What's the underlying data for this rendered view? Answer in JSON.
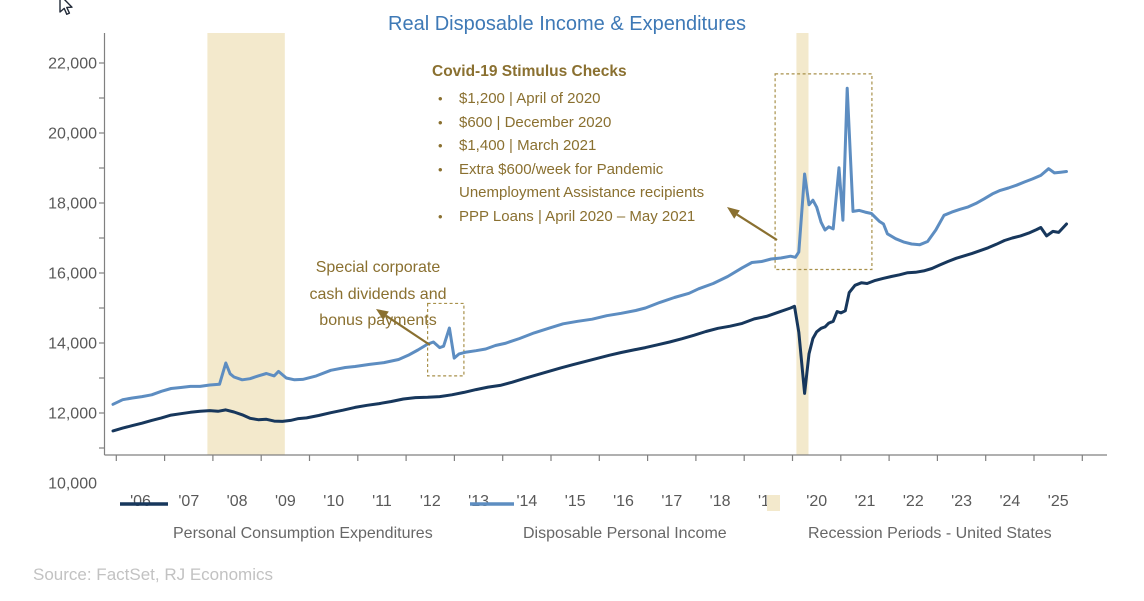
{
  "title": "Real Disposable Income & Expenditures",
  "source": "Source: FactSet, RJ Economics",
  "colors": {
    "pce_line": "#17375c",
    "dpi_line": "#5d8dc1",
    "recession_band": "#f3e9cc",
    "annotation_text": "#8a7030",
    "highlight_box": "#a8914b",
    "title_text": "#3e79b6",
    "axis": "#808080",
    "axis_label": "#595959",
    "legend_text": "#676767",
    "source_text": "#c2c2c2"
  },
  "annotations": {
    "covid": {
      "title": "Covid-19 Stimulus Checks",
      "bullets": [
        "$1,200 | April of 2020",
        "$600 | December 2020",
        "$1,400 | March 2021",
        "Extra $600/week for Pandemic Unemployment Assistance recipients",
        "PPP Loans | April 2020 – May 2021"
      ]
    },
    "dividends": {
      "text": "Special corporate\ncash dividends and\nbonus payments"
    }
  },
  "legend": [
    {
      "label": "Personal Consumption Expenditures",
      "marker": "line",
      "color": "#17375c"
    },
    {
      "label": "Disposable Personal Income",
      "marker": "line",
      "color": "#5d8dc1"
    },
    {
      "label": "Recession Periods - United States",
      "marker": "rect",
      "color": "#f3e9cc"
    }
  ],
  "chart_data": {
    "type": "line",
    "title": "Real Disposable Income & Expenditures",
    "xlabel": "",
    "ylabel": "",
    "x_axis": {
      "tick_labels": [
        "'06",
        "'07",
        "'08",
        "'09",
        "'10",
        "'11",
        "'12",
        "'13",
        "'14",
        "'15",
        "'16",
        "'17",
        "'18",
        "'19",
        "'20",
        "'21",
        "'22",
        "'23",
        "'24",
        "'25"
      ],
      "range": [
        2006,
        2026
      ]
    },
    "y_axis": {
      "labels": [
        "22,000",
        "20,000",
        "18,000",
        "16,000",
        "14,000",
        "12,000",
        "10,000"
      ],
      "label_values": [
        22000,
        20000,
        18000,
        16000,
        14000,
        12000,
        10000
      ],
      "min": 10000,
      "max": 22000,
      "minor_tick_step": 1000,
      "grid": false
    },
    "recession_bands": [
      [
        2007.95,
        2009.55
      ],
      [
        2020.12,
        2020.37
      ]
    ],
    "highlight_boxes": [
      {
        "name": "special-dividends",
        "x": [
          2012.5,
          2013.25
        ],
        "y": [
          13060,
          15130
        ]
      },
      {
        "name": "covid-stimulus",
        "x": [
          2019.68,
          2021.68
        ],
        "y": [
          16100,
          21690
        ]
      }
    ],
    "series": [
      {
        "name": "Personal Consumption Expenditures",
        "color": "#17375c",
        "points": [
          [
            2006.0,
            11490
          ],
          [
            2006.2,
            11570
          ],
          [
            2006.4,
            11640
          ],
          [
            2006.6,
            11710
          ],
          [
            2006.8,
            11790
          ],
          [
            2007.0,
            11860
          ],
          [
            2007.2,
            11940
          ],
          [
            2007.4,
            11980
          ],
          [
            2007.6,
            12020
          ],
          [
            2007.8,
            12050
          ],
          [
            2008.0,
            12070
          ],
          [
            2008.17,
            12050
          ],
          [
            2008.33,
            12090
          ],
          [
            2008.5,
            12030
          ],
          [
            2008.67,
            11950
          ],
          [
            2008.83,
            11850
          ],
          [
            2009.0,
            11810
          ],
          [
            2009.17,
            11820
          ],
          [
            2009.33,
            11770
          ],
          [
            2009.5,
            11760
          ],
          [
            2009.67,
            11790
          ],
          [
            2009.83,
            11840
          ],
          [
            2010.0,
            11860
          ],
          [
            2010.25,
            11930
          ],
          [
            2010.5,
            12010
          ],
          [
            2010.75,
            12080
          ],
          [
            2011.0,
            12160
          ],
          [
            2011.25,
            12220
          ],
          [
            2011.5,
            12270
          ],
          [
            2011.75,
            12330
          ],
          [
            2012.0,
            12400
          ],
          [
            2012.25,
            12440
          ],
          [
            2012.5,
            12450
          ],
          [
            2012.75,
            12470
          ],
          [
            2013.0,
            12520
          ],
          [
            2013.25,
            12590
          ],
          [
            2013.5,
            12670
          ],
          [
            2013.75,
            12740
          ],
          [
            2014.0,
            12790
          ],
          [
            2014.25,
            12880
          ],
          [
            2014.5,
            12990
          ],
          [
            2014.75,
            13090
          ],
          [
            2015.0,
            13190
          ],
          [
            2015.25,
            13290
          ],
          [
            2015.5,
            13380
          ],
          [
            2015.75,
            13470
          ],
          [
            2016.0,
            13560
          ],
          [
            2016.25,
            13650
          ],
          [
            2016.5,
            13730
          ],
          [
            2016.75,
            13800
          ],
          [
            2017.0,
            13870
          ],
          [
            2017.25,
            13950
          ],
          [
            2017.5,
            14030
          ],
          [
            2017.75,
            14120
          ],
          [
            2018.0,
            14220
          ],
          [
            2018.25,
            14330
          ],
          [
            2018.5,
            14420
          ],
          [
            2018.75,
            14480
          ],
          [
            2019.0,
            14560
          ],
          [
            2019.25,
            14690
          ],
          [
            2019.5,
            14760
          ],
          [
            2019.75,
            14880
          ],
          [
            2020.0,
            15000
          ],
          [
            2020.08,
            15050
          ],
          [
            2020.17,
            14310
          ],
          [
            2020.29,
            12560
          ],
          [
            2020.38,
            13690
          ],
          [
            2020.46,
            14130
          ],
          [
            2020.54,
            14320
          ],
          [
            2020.63,
            14420
          ],
          [
            2020.71,
            14460
          ],
          [
            2020.79,
            14570
          ],
          [
            2020.88,
            14620
          ],
          [
            2020.96,
            14900
          ],
          [
            2021.04,
            14860
          ],
          [
            2021.13,
            14920
          ],
          [
            2021.21,
            15440
          ],
          [
            2021.33,
            15650
          ],
          [
            2021.46,
            15720
          ],
          [
            2021.58,
            15700
          ],
          [
            2021.75,
            15790
          ],
          [
            2021.92,
            15850
          ],
          [
            2022.08,
            15900
          ],
          [
            2022.25,
            15950
          ],
          [
            2022.42,
            16010
          ],
          [
            2022.58,
            16020
          ],
          [
            2022.75,
            16060
          ],
          [
            2022.92,
            16130
          ],
          [
            2023.08,
            16230
          ],
          [
            2023.25,
            16330
          ],
          [
            2023.42,
            16420
          ],
          [
            2023.58,
            16490
          ],
          [
            2023.75,
            16560
          ],
          [
            2023.92,
            16640
          ],
          [
            2024.08,
            16720
          ],
          [
            2024.25,
            16820
          ],
          [
            2024.42,
            16930
          ],
          [
            2024.58,
            17000
          ],
          [
            2024.75,
            17060
          ],
          [
            2024.92,
            17140
          ],
          [
            2025.08,
            17240
          ],
          [
            2025.17,
            17300
          ],
          [
            2025.29,
            17060
          ],
          [
            2025.42,
            17190
          ],
          [
            2025.54,
            17160
          ],
          [
            2025.7,
            17400
          ]
        ]
      },
      {
        "name": "Disposable Personal Income",
        "color": "#5d8dc1",
        "points": [
          [
            2006.0,
            12250
          ],
          [
            2006.2,
            12380
          ],
          [
            2006.4,
            12430
          ],
          [
            2006.6,
            12470
          ],
          [
            2006.8,
            12520
          ],
          [
            2007.0,
            12620
          ],
          [
            2007.2,
            12700
          ],
          [
            2007.4,
            12730
          ],
          [
            2007.6,
            12760
          ],
          [
            2007.8,
            12760
          ],
          [
            2008.0,
            12800
          ],
          [
            2008.2,
            12820
          ],
          [
            2008.33,
            13430
          ],
          [
            2008.42,
            13120
          ],
          [
            2008.5,
            13030
          ],
          [
            2008.67,
            12950
          ],
          [
            2008.83,
            12980
          ],
          [
            2009.0,
            13060
          ],
          [
            2009.17,
            13130
          ],
          [
            2009.33,
            13060
          ],
          [
            2009.42,
            13190
          ],
          [
            2009.58,
            13000
          ],
          [
            2009.75,
            12950
          ],
          [
            2009.92,
            12960
          ],
          [
            2010.2,
            13060
          ],
          [
            2010.5,
            13220
          ],
          [
            2010.8,
            13300
          ],
          [
            2011.0,
            13330
          ],
          [
            2011.3,
            13390
          ],
          [
            2011.6,
            13440
          ],
          [
            2011.9,
            13530
          ],
          [
            2012.1,
            13650
          ],
          [
            2012.3,
            13800
          ],
          [
            2012.5,
            13970
          ],
          [
            2012.62,
            14030
          ],
          [
            2012.75,
            13870
          ],
          [
            2012.83,
            13910
          ],
          [
            2012.95,
            14430
          ],
          [
            2013.05,
            13570
          ],
          [
            2013.15,
            13690
          ],
          [
            2013.3,
            13740
          ],
          [
            2013.5,
            13780
          ],
          [
            2013.7,
            13830
          ],
          [
            2013.9,
            13930
          ],
          [
            2014.1,
            13990
          ],
          [
            2014.4,
            14130
          ],
          [
            2014.7,
            14290
          ],
          [
            2015.0,
            14420
          ],
          [
            2015.3,
            14550
          ],
          [
            2015.6,
            14620
          ],
          [
            2015.9,
            14680
          ],
          [
            2016.2,
            14780
          ],
          [
            2016.5,
            14850
          ],
          [
            2016.8,
            14930
          ],
          [
            2017.0,
            15000
          ],
          [
            2017.3,
            15160
          ],
          [
            2017.6,
            15300
          ],
          [
            2017.9,
            15420
          ],
          [
            2018.1,
            15550
          ],
          [
            2018.4,
            15700
          ],
          [
            2018.7,
            15900
          ],
          [
            2019.0,
            16150
          ],
          [
            2019.2,
            16300
          ],
          [
            2019.4,
            16330
          ],
          [
            2019.6,
            16400
          ],
          [
            2019.8,
            16430
          ],
          [
            2020.0,
            16480
          ],
          [
            2020.1,
            16450
          ],
          [
            2020.17,
            16600
          ],
          [
            2020.29,
            18830
          ],
          [
            2020.38,
            17950
          ],
          [
            2020.46,
            18080
          ],
          [
            2020.54,
            17880
          ],
          [
            2020.63,
            17450
          ],
          [
            2020.71,
            17230
          ],
          [
            2020.79,
            17320
          ],
          [
            2020.88,
            17260
          ],
          [
            2021.0,
            19010
          ],
          [
            2021.08,
            17510
          ],
          [
            2021.17,
            21280
          ],
          [
            2021.29,
            17760
          ],
          [
            2021.42,
            17790
          ],
          [
            2021.54,
            17740
          ],
          [
            2021.67,
            17700
          ],
          [
            2021.83,
            17480
          ],
          [
            2021.92,
            17400
          ],
          [
            2022.0,
            17120
          ],
          [
            2022.17,
            16980
          ],
          [
            2022.33,
            16890
          ],
          [
            2022.5,
            16830
          ],
          [
            2022.67,
            16810
          ],
          [
            2022.83,
            16900
          ],
          [
            2023.0,
            17230
          ],
          [
            2023.17,
            17650
          ],
          [
            2023.33,
            17740
          ],
          [
            2023.5,
            17820
          ],
          [
            2023.67,
            17890
          ],
          [
            2023.83,
            17990
          ],
          [
            2024.0,
            18120
          ],
          [
            2024.17,
            18260
          ],
          [
            2024.33,
            18360
          ],
          [
            2024.5,
            18430
          ],
          [
            2024.67,
            18510
          ],
          [
            2024.83,
            18600
          ],
          [
            2025.0,
            18690
          ],
          [
            2025.17,
            18790
          ],
          [
            2025.33,
            18980
          ],
          [
            2025.45,
            18860
          ],
          [
            2025.58,
            18880
          ],
          [
            2025.7,
            18900
          ]
        ]
      }
    ]
  }
}
